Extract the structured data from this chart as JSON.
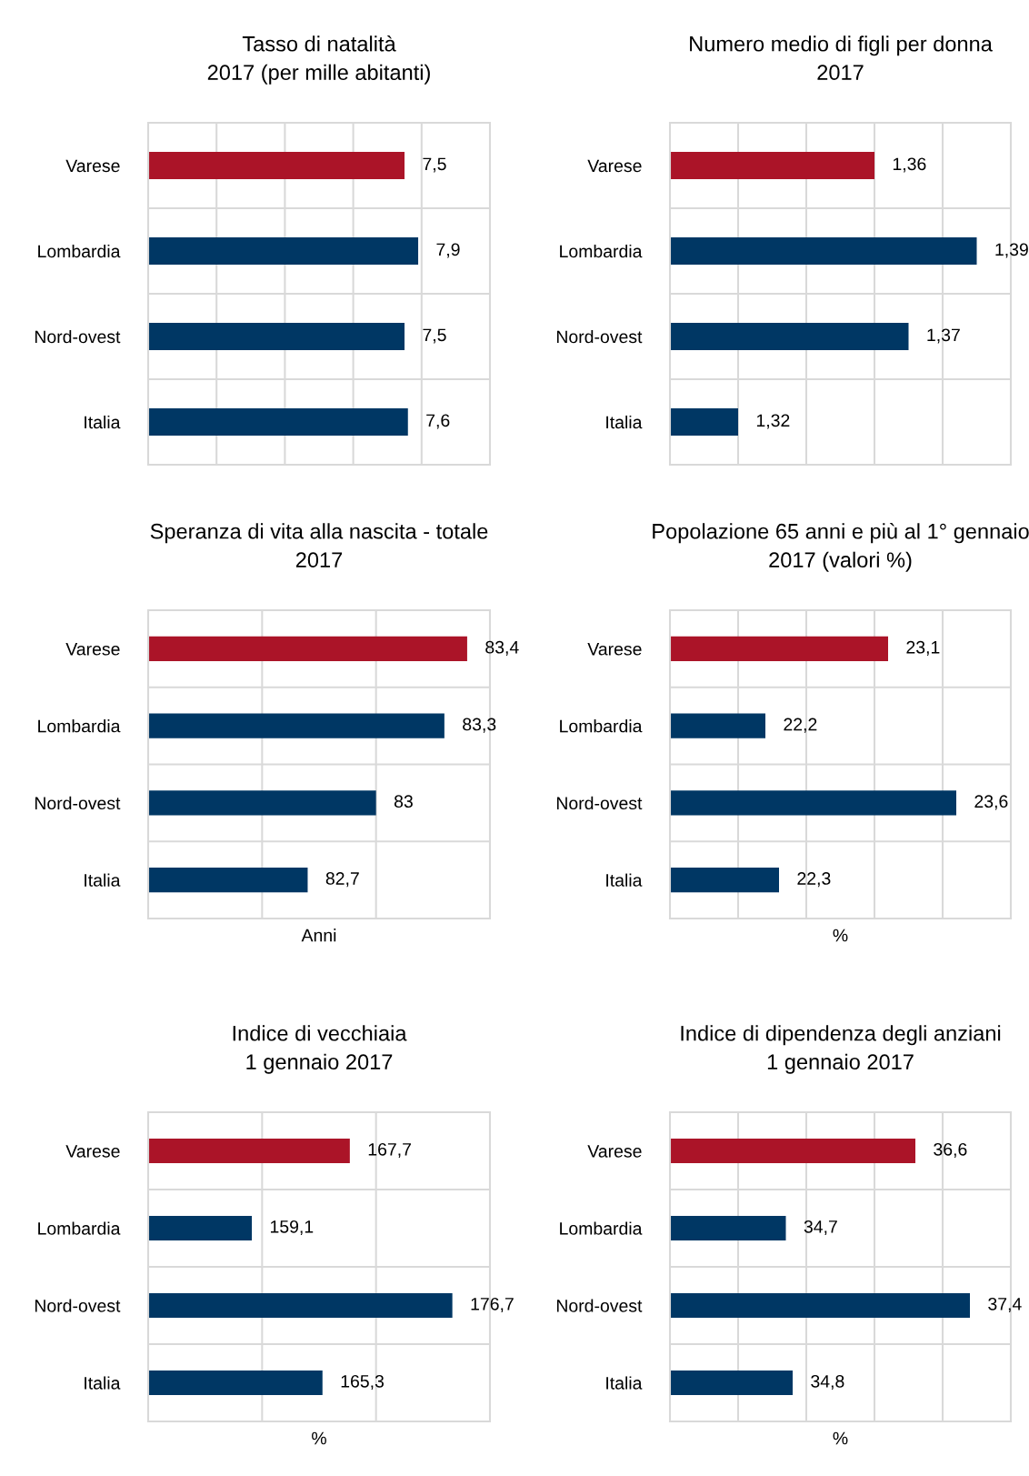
{
  "chart_data": [
    {
      "type": "bar",
      "orientation": "horizontal",
      "title": "Tasso di natalità\n2017 (per mille abitanti)",
      "categories": [
        "Varese",
        "Lombardia",
        "Nord-ovest",
        "Italia"
      ],
      "values": [
        7.5,
        7.9,
        7.5,
        7.6
      ],
      "value_labels": [
        "7,5",
        "7,9",
        "7,5",
        "7,6"
      ],
      "colors": [
        "#ab1428",
        "#003764",
        "#003764",
        "#003764"
      ],
      "xlim": [
        0,
        10
      ],
      "xticks": [
        {
          "value": 0,
          "label": null
        },
        {
          "value": 2,
          "label": null
        },
        {
          "value": 4,
          "label": null
        },
        {
          "value": 6,
          "label": null
        },
        {
          "value": 8,
          "label": null
        },
        {
          "value": 10,
          "label": null
        }
      ],
      "tick_labels": "y",
      "grid": true,
      "legend": false
    },
    {
      "type": "bar",
      "orientation": "horizontal",
      "title": "Numero medio di figli per donna\n2017",
      "categories": [
        "Varese",
        "Lombardia",
        "Nord-ovest",
        "Italia"
      ],
      "values": [
        1.36,
        1.39,
        1.37,
        1.32
      ],
      "value_labels": [
        "1,36",
        "1,39",
        "1,37",
        "1,32"
      ],
      "colors": [
        "#ab1428",
        "#003764",
        "#003764",
        "#003764"
      ],
      "xlim": [
        1.3,
        1.4
      ],
      "xticks": [
        {
          "value": 1.3,
          "label": null
        },
        {
          "value": 1.32,
          "label": null
        },
        {
          "value": 1.34,
          "label": null
        },
        {
          "value": 1.36,
          "label": null
        },
        {
          "value": 1.38,
          "label": null
        },
        {
          "value": 1.4,
          "label": null
        }
      ],
      "tick_labels": "y",
      "grid": true,
      "legend": false
    },
    {
      "type": "bar",
      "orientation": "horizontal",
      "title": "Speranza di vita alla nascita - totale\n2017",
      "xlabel": "Anni",
      "categories": [
        "Varese",
        "Lombardia",
        "Nord-ovest",
        "Italia"
      ],
      "values": [
        83.4,
        83.3,
        83,
        82.7
      ],
      "value_labels": [
        "83,4",
        "83,3",
        "83",
        "82,7"
      ],
      "colors": [
        "#ab1428",
        "#003764",
        "#003764",
        "#003764"
      ],
      "xlim": [
        82,
        83.5
      ],
      "xticks": [
        {
          "value": 82,
          "label": null
        },
        {
          "value": 82.5,
          "label": null
        },
        {
          "value": 83,
          "label": null
        },
        {
          "value": 83.5,
          "label": null
        }
      ],
      "tick_labels": "y",
      "grid": true,
      "legend": false
    },
    {
      "type": "bar",
      "orientation": "horizontal",
      "title": "Popolazione 65 anni e più al 1° gennaio\n2017 (valori %)",
      "xlabel": "%",
      "categories": [
        "Varese",
        "Lombardia",
        "Nord-ovest",
        "Italia"
      ],
      "values": [
        23.1,
        22.2,
        23.6,
        22.3
      ],
      "value_labels": [
        "23,1",
        "22,2",
        "23,6",
        "22,3"
      ],
      "colors": [
        "#ab1428",
        "#003764",
        "#003764",
        "#003764"
      ],
      "xlim": [
        21.5,
        24
      ],
      "xticks": [
        {
          "value": 21.5,
          "label": null
        },
        {
          "value": 22,
          "label": null
        },
        {
          "value": 22.5,
          "label": null
        },
        {
          "value": 23,
          "label": null
        },
        {
          "value": 23.5,
          "label": null
        },
        {
          "value": 24,
          "label": null
        }
      ],
      "tick_labels": "y",
      "grid": true,
      "legend": false
    },
    {
      "type": "bar",
      "orientation": "horizontal",
      "title": "Indice di vecchiaia\n1 gennaio 2017",
      "xlabel": "%",
      "categories": [
        "Varese",
        "Lombardia",
        "Nord-ovest",
        "Italia"
      ],
      "values": [
        167.7,
        159.1,
        176.7,
        165.3
      ],
      "value_labels": [
        "167,7",
        "159,1",
        "176,7",
        "165,3"
      ],
      "colors": [
        "#ab1428",
        "#003764",
        "#003764",
        "#003764"
      ],
      "xlim": [
        150,
        180
      ],
      "xticks": [
        {
          "value": 150,
          "label": null
        },
        {
          "value": 160,
          "label": null
        },
        {
          "value": 170,
          "label": null
        },
        {
          "value": 180,
          "label": null
        }
      ],
      "tick_labels": "y",
      "grid": true,
      "legend": false
    },
    {
      "type": "bar",
      "orientation": "horizontal",
      "title": "Indice di dipendenza degli anziani\n1 gennaio 2017",
      "xlabel": "%",
      "categories": [
        "Varese",
        "Lombardia",
        "Nord-ovest",
        "Italia"
      ],
      "values": [
        36.6,
        34.7,
        37.4,
        34.8
      ],
      "value_labels": [
        "36,6",
        "34,7",
        "37,4",
        "34,8"
      ],
      "colors": [
        "#ab1428",
        "#003764",
        "#003764",
        "#003764"
      ],
      "xlim": [
        33,
        38
      ],
      "xticks": [
        {
          "value": 33,
          "label": null
        },
        {
          "value": 34,
          "label": null
        },
        {
          "value": 35,
          "label": null
        },
        {
          "value": 36,
          "label": null
        },
        {
          "value": 37,
          "label": null
        },
        {
          "value": 38,
          "label": null
        }
      ],
      "tick_labels": "y",
      "grid": true,
      "legend": false
    }
  ]
}
